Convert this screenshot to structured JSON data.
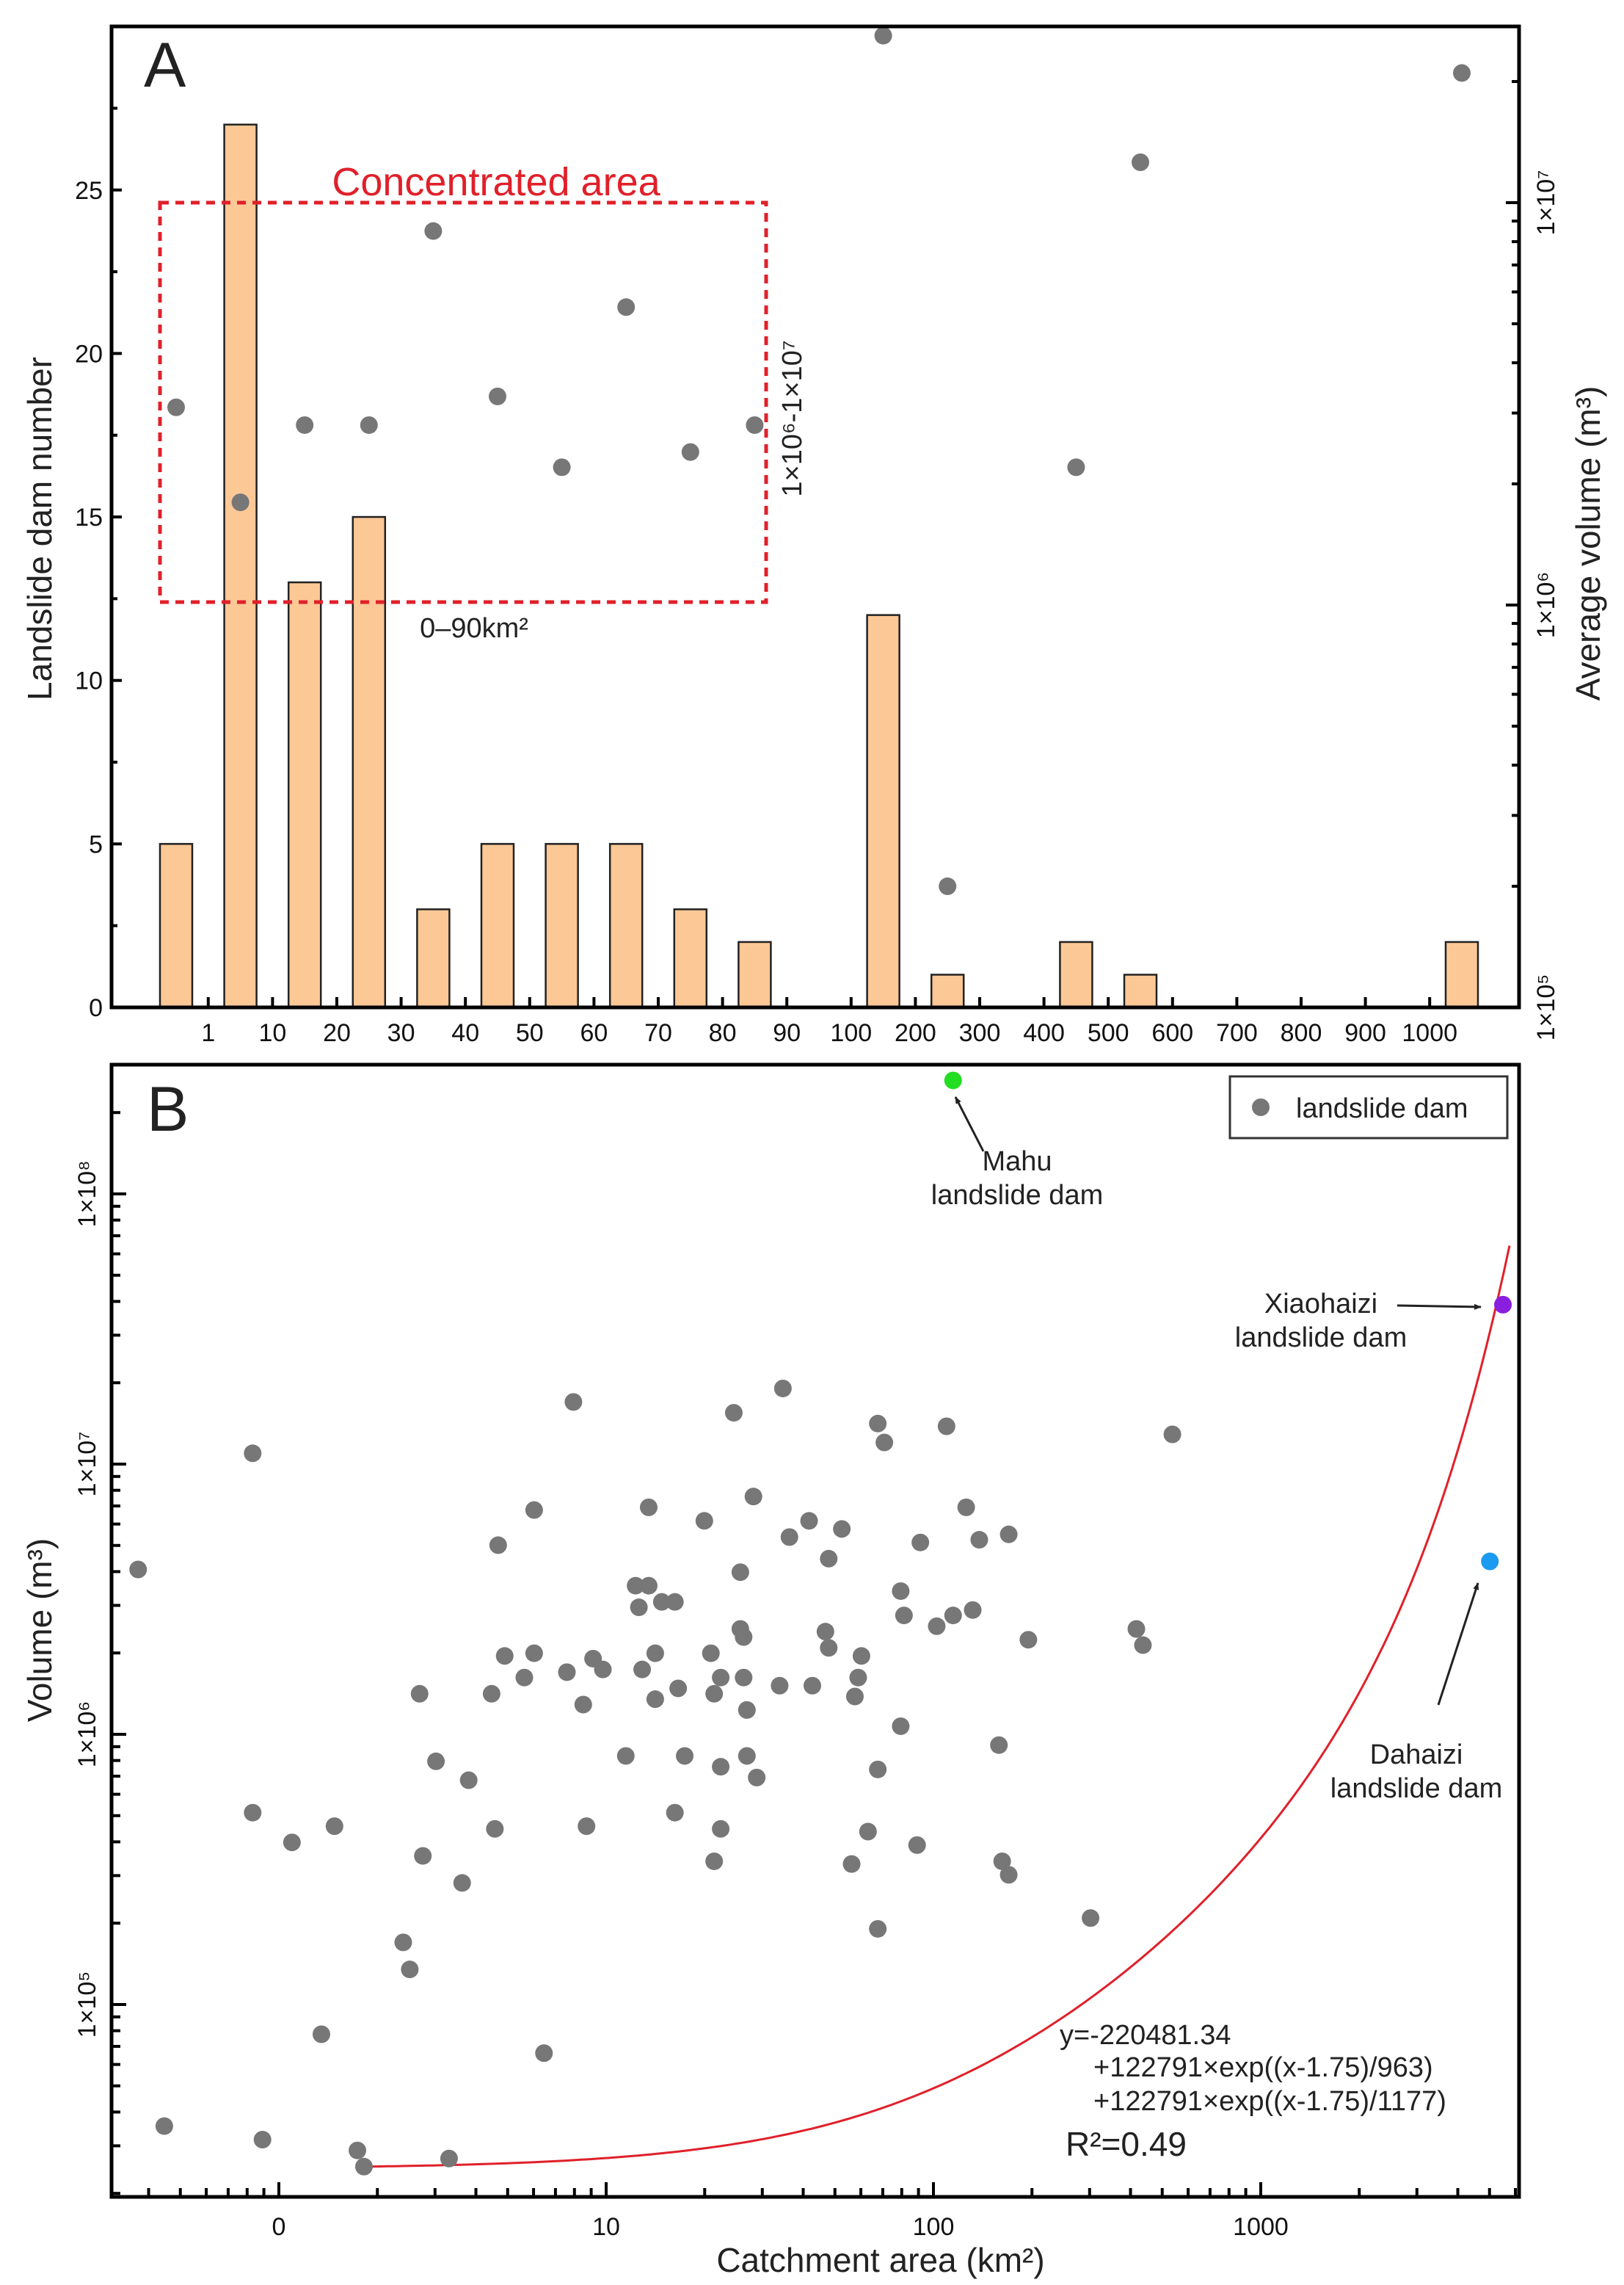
{
  "chart_data": [
    {
      "panel": "A",
      "type": "bar",
      "panel_label": "A",
      "ylabel": "Landslide dam number",
      "y2label": "Average volume (m³)",
      "ylim": [
        0,
        30
      ],
      "y2lim_log10": [
        5,
        7.44
      ],
      "yticks": [
        "0",
        "5",
        "10",
        "15",
        "20",
        "25"
      ],
      "y2ticks": [
        "1×10⁵",
        "1×10⁶",
        "1×10⁷"
      ],
      "xtick_labels": [
        "1",
        "10",
        "20",
        "30",
        "40",
        "50",
        "60",
        "70",
        "80",
        "90",
        "100",
        "200",
        "300",
        "400",
        "500",
        "600",
        "700",
        "800",
        "900",
        "1000"
      ],
      "bins": [
        "0-1",
        "1-10",
        "10-20",
        "20-30",
        "30-40",
        "40-50",
        "50-60",
        "60-70",
        "70-80",
        "80-90",
        "90-100",
        "100-200",
        "200-300",
        "300-400",
        "400-500",
        "500-600",
        "600-700",
        "700-800",
        "800-900",
        "900-1000",
        ">1000"
      ],
      "bar_values": [
        5,
        27,
        13,
        15,
        3,
        5,
        5,
        5,
        3,
        2,
        0,
        12,
        1,
        0,
        2,
        1,
        0,
        0,
        0,
        0,
        2
      ],
      "bar_color": "#fcc896",
      "avg_volume": [
        3100000.0,
        1800000.0,
        2800000.0,
        2800000.0,
        8500000.0,
        3300000.0,
        2200000.0,
        5500000.0,
        2400000.0,
        2800000.0,
        null,
        26000000.0,
        200000.0,
        null,
        2200000.0,
        12600000.0,
        null,
        null,
        null,
        null,
        21000000.0
      ],
      "dot_color": "#777777",
      "annotation_title": "Concentrated area",
      "annotation_x": "0–90km²",
      "annotation_y": "1×10⁶-1×10⁷",
      "annotation_color": "#e0202a"
    },
    {
      "panel": "B",
      "type": "scatter",
      "panel_label": "B",
      "xlabel": "Catchment area (km²)",
      "ylabel": "Volume (m³)",
      "xscale": "log",
      "yscale": "log",
      "xlim_log10": [
        -0.43,
        3.8
      ],
      "ylim_log10": [
        4.29,
        8.48
      ],
      "xticks": [
        {
          "log10": 0,
          "label": "0"
        },
        {
          "log10": 1,
          "label": "10"
        },
        {
          "log10": 2,
          "label": "100"
        },
        {
          "log10": 3,
          "label": "1000"
        }
      ],
      "yticks": [
        {
          "log10": 5,
          "label": "1×10⁵"
        },
        {
          "log10": 6,
          "label": "1×10⁶"
        },
        {
          "log10": 7,
          "label": "1×10⁷"
        },
        {
          "log10": 8,
          "label": "1×10⁸"
        }
      ],
      "legend": {
        "label": "landslide dam",
        "position": "top-right"
      },
      "points_log10": [
        [
          -0.43,
          6.61
        ],
        [
          -0.35,
          4.55
        ],
        [
          -0.08,
          7.04
        ],
        [
          -0.08,
          5.71
        ],
        [
          -0.05,
          4.5
        ],
        [
          0.04,
          5.6
        ],
        [
          0.17,
          5.66
        ],
        [
          0.13,
          4.89
        ],
        [
          0.24,
          4.46
        ],
        [
          0.26,
          4.4
        ],
        [
          0.38,
          5.23
        ],
        [
          0.4,
          5.13
        ],
        [
          0.43,
          6.15
        ],
        [
          0.44,
          5.55
        ],
        [
          0.48,
          5.9
        ],
        [
          0.52,
          4.43
        ],
        [
          0.56,
          5.45
        ],
        [
          0.58,
          5.83
        ],
        [
          0.65,
          6.15
        ],
        [
          0.66,
          5.65
        ],
        [
          0.67,
          6.7
        ],
        [
          0.69,
          6.29
        ],
        [
          0.75,
          6.21
        ],
        [
          0.78,
          6.3
        ],
        [
          0.78,
          6.83
        ],
        [
          0.81,
          4.82
        ],
        [
          0.88,
          6.23
        ],
        [
          0.9,
          7.23
        ],
        [
          0.93,
          6.11
        ],
        [
          0.94,
          5.66
        ],
        [
          0.96,
          6.28
        ],
        [
          0.99,
          6.24
        ],
        [
          1.06,
          5.92
        ],
        [
          1.09,
          6.55
        ],
        [
          1.1,
          6.47
        ],
        [
          1.11,
          6.24
        ],
        [
          1.13,
          6.55
        ],
        [
          1.13,
          6.84
        ],
        [
          1.15,
          6.3
        ],
        [
          1.15,
          6.13
        ],
        [
          1.17,
          6.49
        ],
        [
          1.21,
          6.49
        ],
        [
          1.21,
          5.71
        ],
        [
          1.22,
          6.17
        ],
        [
          1.24,
          5.92
        ],
        [
          1.3,
          6.79
        ],
        [
          1.32,
          6.3
        ],
        [
          1.33,
          6.15
        ],
        [
          1.33,
          5.53
        ],
        [
          1.35,
          6.21
        ],
        [
          1.35,
          5.88
        ],
        [
          1.35,
          5.65
        ],
        [
          1.39,
          7.19
        ],
        [
          1.41,
          6.6
        ],
        [
          1.41,
          6.39
        ],
        [
          1.42,
          6.21
        ],
        [
          1.42,
          6.36
        ],
        [
          1.43,
          6.09
        ],
        [
          1.43,
          5.92
        ],
        [
          1.45,
          6.88
        ],
        [
          1.46,
          5.84
        ],
        [
          1.53,
          6.18
        ],
        [
          1.54,
          7.28
        ],
        [
          1.56,
          6.73
        ],
        [
          1.62,
          6.79
        ],
        [
          1.63,
          6.18
        ],
        [
          1.67,
          6.38
        ],
        [
          1.68,
          6.65
        ],
        [
          1.68,
          6.32
        ],
        [
          1.72,
          6.76
        ],
        [
          1.75,
          5.52
        ],
        [
          1.76,
          6.14
        ],
        [
          1.77,
          6.21
        ],
        [
          1.78,
          6.29
        ],
        [
          1.83,
          7.15
        ],
        [
          1.83,
          5.87
        ],
        [
          1.83,
          5.28
        ],
        [
          1.8,
          5.64
        ],
        [
          1.85,
          7.08
        ],
        [
          1.9,
          6.03
        ],
        [
          1.9,
          6.53
        ],
        [
          1.91,
          6.44
        ],
        [
          1.95,
          5.59
        ],
        [
          1.96,
          6.71
        ],
        [
          2.01,
          6.4
        ],
        [
          2.04,
          7.14
        ],
        [
          2.06,
          6.44
        ],
        [
          2.1,
          6.84
        ],
        [
          2.12,
          6.46
        ],
        [
          2.14,
          6.72
        ],
        [
          2.2,
          5.96
        ],
        [
          2.21,
          5.53
        ],
        [
          2.23,
          5.48
        ],
        [
          2.23,
          6.74
        ],
        [
          2.29,
          6.35
        ],
        [
          2.48,
          5.32
        ],
        [
          2.62,
          6.39
        ],
        [
          2.64,
          6.33
        ],
        [
          2.73,
          7.11
        ]
      ],
      "highlighted": [
        {
          "name_line1": "Mahu",
          "name_line2": "landslide dam",
          "log10": [
            2.06,
            8.42
          ],
          "color": "#22dd22"
        },
        {
          "name_line1": "Xiaohaizi",
          "name_line2": "landslide dam",
          "log10": [
            3.74,
            7.59
          ],
          "color": "#8a1fe0"
        },
        {
          "name_line1": "Dahaizi",
          "name_line2": "landslide dam",
          "log10": [
            3.7,
            6.64
          ],
          "color": "#1a9af0"
        }
      ],
      "fit": {
        "color": "#e0202a",
        "a": -220481.34,
        "b": 122791,
        "x0": 1.75,
        "t1": 963,
        "t2": 1177,
        "x_range_log10": [
          0.26,
          3.76
        ],
        "eq_line1": "y=-220481.34",
        "eq_line2": "+122791×exp((x-1.75)/963)",
        "eq_line3": "+122791×exp((x-1.75)/1177)",
        "r2": "R²=0.49"
      }
    }
  ]
}
